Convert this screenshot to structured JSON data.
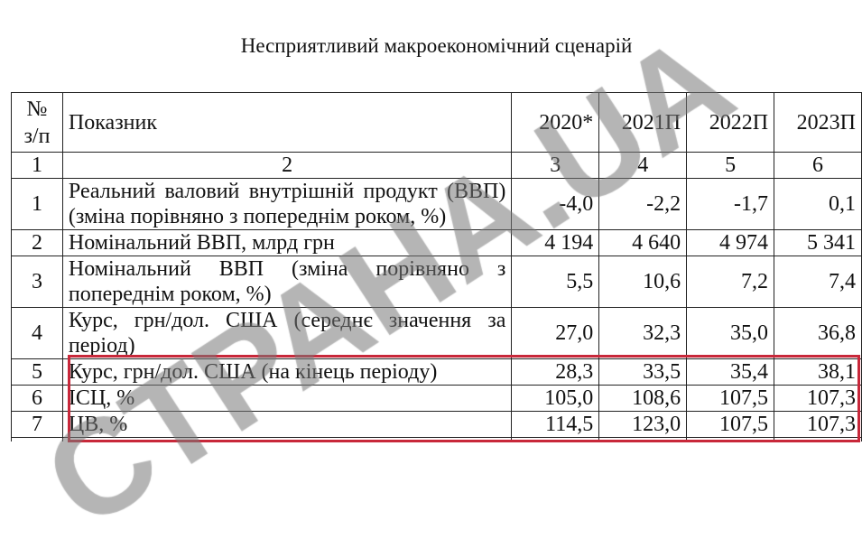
{
  "title": "Несприятливий макроекономічний сценарій",
  "columns": [
    "№ з/п",
    "Показник",
    "2020*",
    "2021П",
    "2022П",
    "2023П"
  ],
  "column_numbers": [
    "1",
    "2",
    "3",
    "4",
    "5",
    "6"
  ],
  "rows": [
    {
      "n": "1",
      "label": "Реальний валовий внутрішній продукт (ВВП) (зміна порівняно з попереднім роком, %)",
      "v": [
        "-4,0",
        "-2,2",
        "-1,7",
        "0,1"
      ]
    },
    {
      "n": "2",
      "label": "Номінальний ВВП, млрд грн",
      "v": [
        "4 194",
        "4 640",
        "4 974",
        "5 341"
      ]
    },
    {
      "n": "3",
      "label": "Номінальний ВВП (зміна порівняно з попереднім роком, %)",
      "v": [
        "5,5",
        "10,6",
        "7,2",
        "7,4"
      ]
    },
    {
      "n": "4",
      "label": "Курс, грн/дол. США (середнє значення за період)",
      "v": [
        "27,0",
        "32,3",
        "35,0",
        "36,8"
      ]
    },
    {
      "n": "5",
      "label": "Курс, грн/дол. США (на кінець періоду)",
      "v": [
        "28,3",
        "33,5",
        "35,4",
        "38,1"
      ]
    },
    {
      "n": "6",
      "label": "ІСЦ, %",
      "v": [
        "105,0",
        "108,6",
        "107,5",
        "107,3"
      ]
    },
    {
      "n": "7",
      "label": "ЦВ, %",
      "v": [
        "114,5",
        "123,0",
        "107,5",
        "107,3"
      ]
    }
  ],
  "highlight_color": "#c8283a",
  "watermark": "СТРАНА.UA"
}
